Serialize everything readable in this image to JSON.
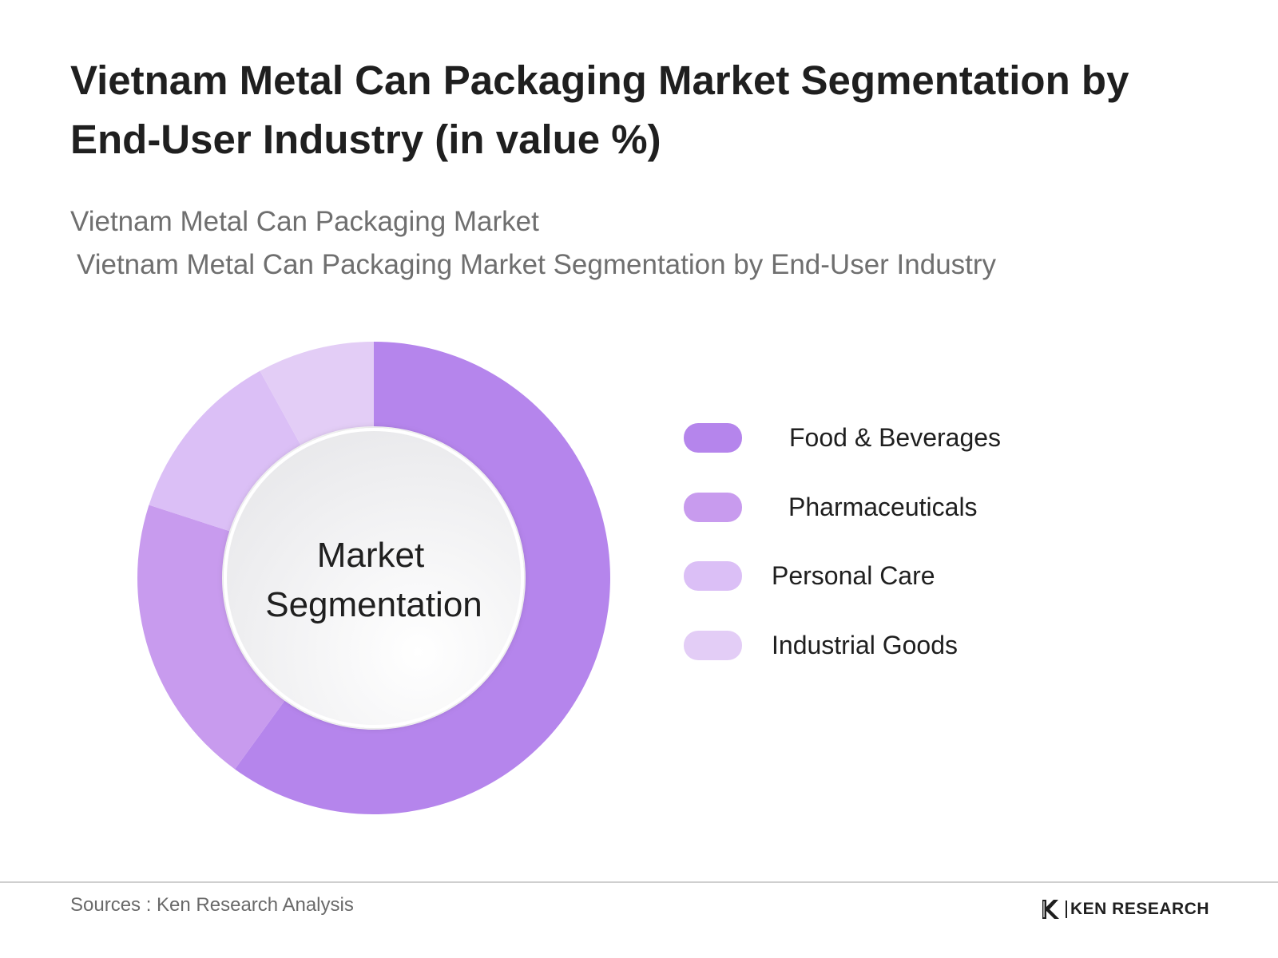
{
  "header": {
    "title": "Vietnam Metal Can Packaging Market Segmentation by End-User Industry (in value %)",
    "subtitle_1": "Vietnam Metal Can Packaging Market",
    "subtitle_2": "Vietnam Metal Can Packaging Market Segmentation by End-User Industry"
  },
  "chart_data": {
    "type": "pie",
    "center_label": [
      "Market",
      "Segmentation"
    ],
    "categories": [
      "Food & Beverages",
      "Pharmaceuticals",
      "Personal Care",
      "Industrial Goods"
    ],
    "values": [
      60,
      20,
      12,
      8
    ],
    "colors": [
      "#b585ec",
      "#c89bee",
      "#dbbff6",
      "#e3cdf6"
    ],
    "legend_position": "right"
  },
  "footer": {
    "sources": "Sources : Ken Research Analysis",
    "logo_text": "KEN RESEARCH"
  }
}
